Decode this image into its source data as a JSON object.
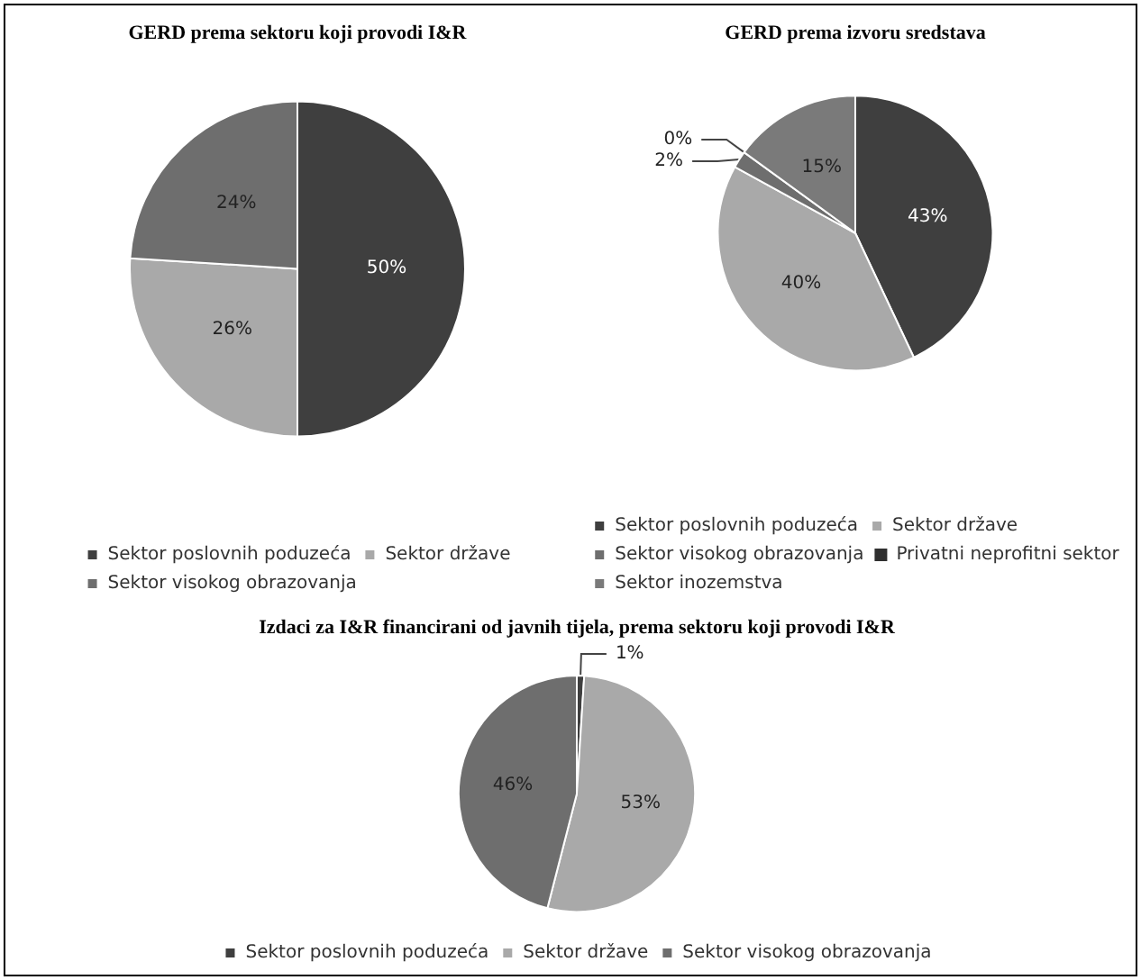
{
  "chart_data": [
    {
      "type": "pie",
      "title": "GERD prema sektoru koji provodi I&R",
      "categories": [
        "Sektor poslovnih poduzeća",
        "Sektor države",
        "Sektor visokog obrazovanja"
      ],
      "values": [
        50,
        26,
        24
      ],
      "value_labels": [
        "50%",
        "26%",
        "24%"
      ],
      "colors": [
        "#3f3f3f",
        "#a9a9a9",
        "#6e6e6e"
      ],
      "legend": "bottom"
    },
    {
      "type": "pie",
      "title": "GERD prema izvoru sredstava",
      "categories": [
        "Sektor poslovnih poduzeća",
        "Sektor države",
        "Sektor visokog obrazovanja",
        "Privatni neprofitni sektor",
        "Sektor inozemstva"
      ],
      "values": [
        43,
        40,
        2,
        0,
        15
      ],
      "value_labels": [
        "43%",
        "40%",
        "2%",
        "0%",
        "15%"
      ],
      "colors": [
        "#3f3f3f",
        "#a9a9a9",
        "#6e6e6e",
        "#2f2f2f",
        "#7a7a7a"
      ],
      "legend": "bottom"
    },
    {
      "type": "pie",
      "title": "Izdaci za I&R financirani od javnih tijela, prema sektoru koji provodi I&R",
      "categories": [
        "Sektor poslovnih poduzeća",
        "Sektor države",
        "Sektor visokog obrazovanja"
      ],
      "values": [
        1,
        53,
        46
      ],
      "value_labels": [
        "1%",
        "53%",
        "46%"
      ],
      "colors": [
        "#3f3f3f",
        "#a9a9a9",
        "#6e6e6e"
      ],
      "legend": "bottom"
    }
  ]
}
